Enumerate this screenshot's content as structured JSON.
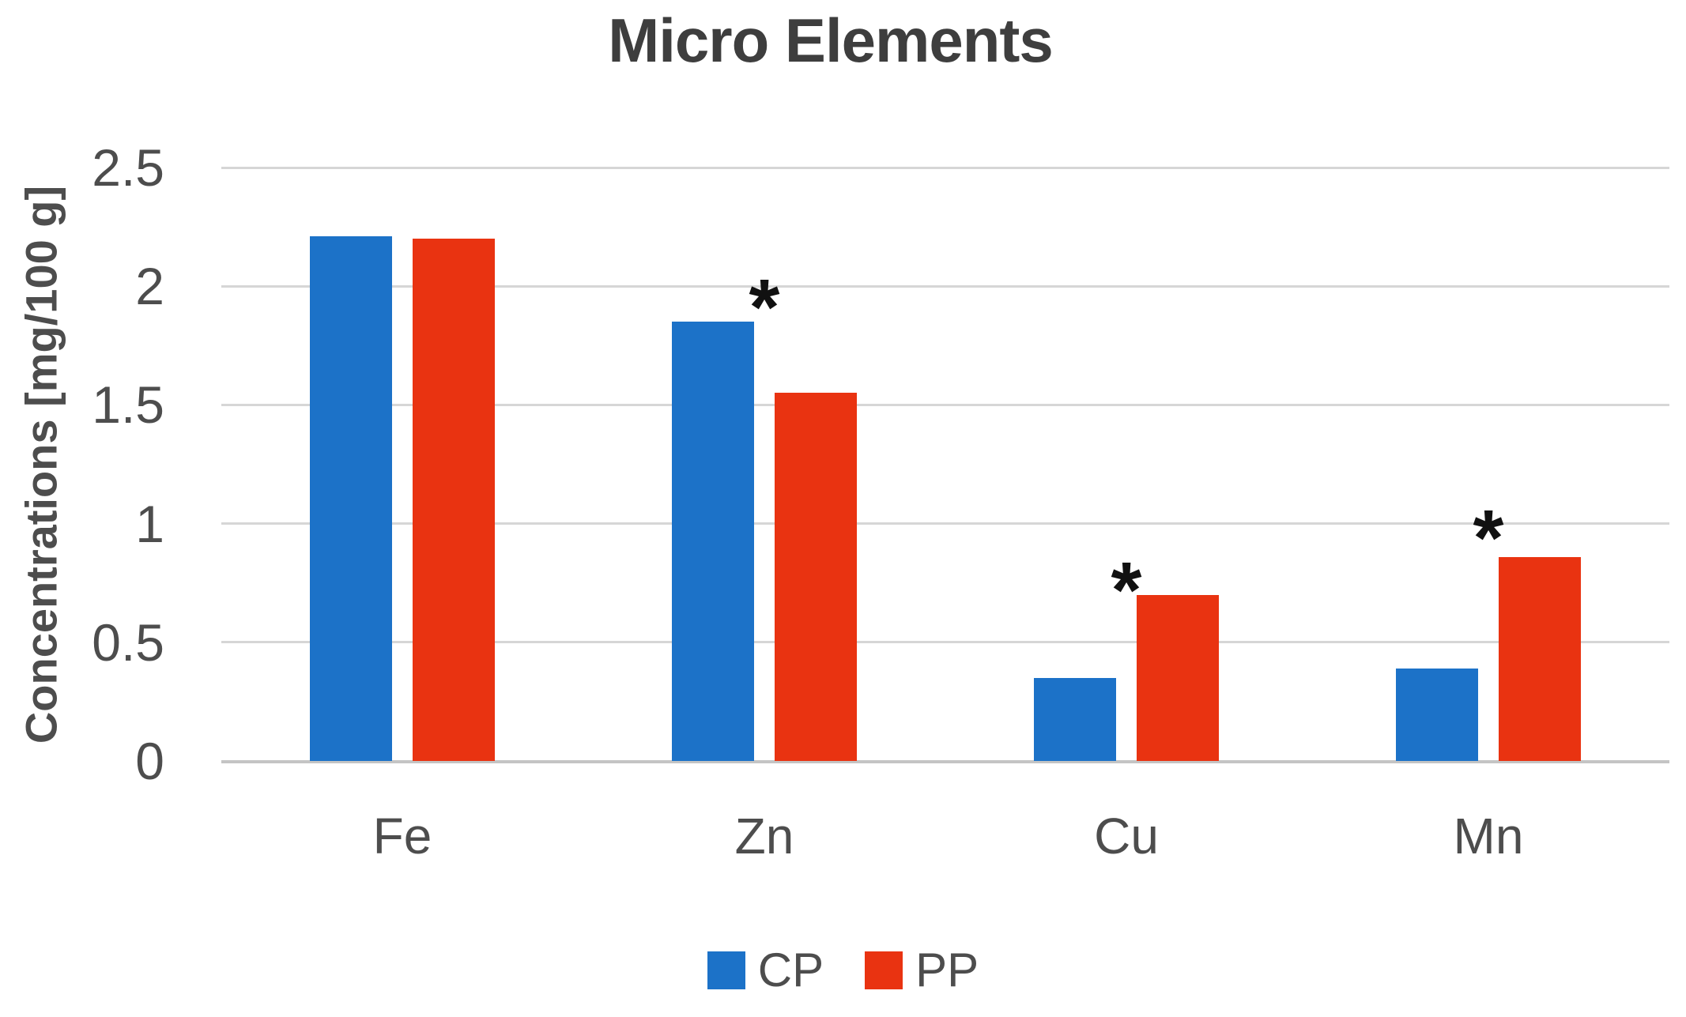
{
  "chart_data": {
    "type": "bar",
    "title": "Micro Elements",
    "ylabel": "Concentrations [mg/100 g]",
    "xlabel": "",
    "categories": [
      "Fe",
      "Zn",
      "Cu",
      "Mn"
    ],
    "series": [
      {
        "name": "CP",
        "color": "#1C72C8",
        "values": [
          2.21,
          1.85,
          0.35,
          0.39
        ]
      },
      {
        "name": "PP",
        "color": "#E93311",
        "values": [
          2.2,
          1.55,
          0.7,
          0.86
        ]
      }
    ],
    "ylim": [
      0,
      2.5
    ],
    "ytick_step": 0.5,
    "ytick_labels": [
      "2.5",
      "2",
      "1.5",
      "1",
      "0.5",
      "0"
    ],
    "grid": true,
    "legend": {
      "position": "bottom",
      "items": [
        "CP",
        "PP"
      ]
    },
    "annotations": [
      {
        "category": "Zn",
        "symbol": "*",
        "value": 1.97,
        "near_series": "CP"
      },
      {
        "category": "Cu",
        "symbol": "*",
        "value": 0.78,
        "near_series": "PP"
      },
      {
        "category": "Mn",
        "symbol": "*",
        "value": 1.0,
        "near_series": "PP"
      }
    ],
    "colors": {
      "gridline": "#D6D6D6",
      "axis_line": "#C4C4C4",
      "text": "#4D4D4D",
      "title": "#3E3E3E",
      "annotation": "#111111"
    }
  }
}
